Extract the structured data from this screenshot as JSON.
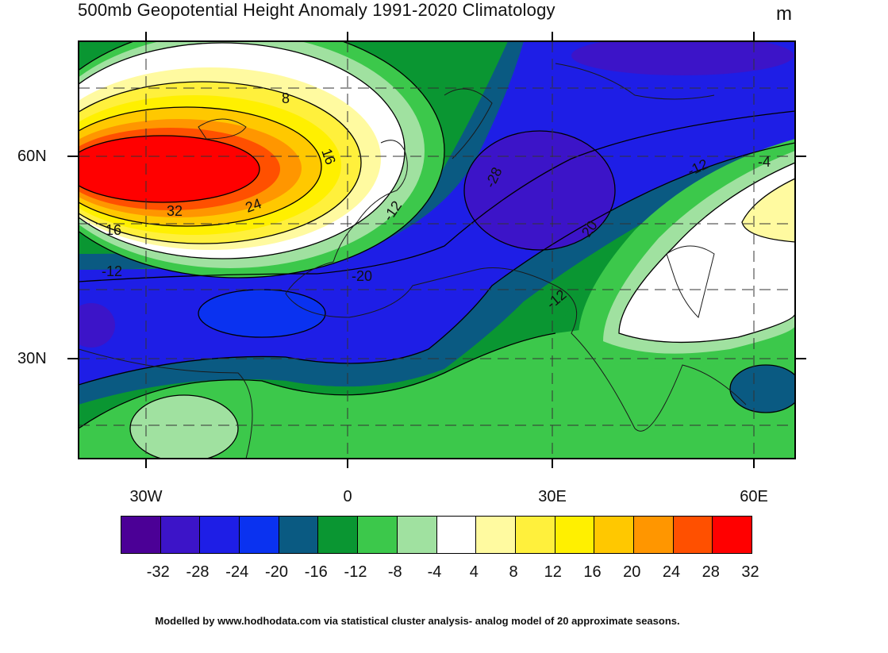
{
  "title": "500mb Geopotential Height Anomaly  1991-2020 Climatology",
  "unit": "m",
  "footer": "Modelled by www.hodhodata.com via statistical cluster analysis- analog model of 20 approximate seasons.",
  "lat_labels": [
    "60N",
    "30N"
  ],
  "lon_labels": [
    "30W",
    "0",
    "30E",
    "60E"
  ],
  "colorbar": {
    "colors": [
      "#4b0096",
      "#3c14c8",
      "#1e1ee6",
      "#0a32f0",
      "#0a5a82",
      "#0a9632",
      "#3cc84b",
      "#a0e1a0",
      "#ffffff",
      "#fffaa0",
      "#fff03c",
      "#fff000",
      "#ffc800",
      "#ff9600",
      "#ff5000",
      "#ff0000"
    ],
    "labels": [
      "-32",
      "-28",
      "-24",
      "-20",
      "-16",
      "-12",
      "-8",
      "-4",
      "4",
      "8",
      "12",
      "16",
      "20",
      "24",
      "28",
      "32"
    ]
  },
  "contour_labels": [
    "8",
    "16",
    "32",
    "24",
    "16",
    "-12",
    "-12",
    "-28",
    "-20",
    "20",
    "-12",
    "-12",
    "-4"
  ]
}
